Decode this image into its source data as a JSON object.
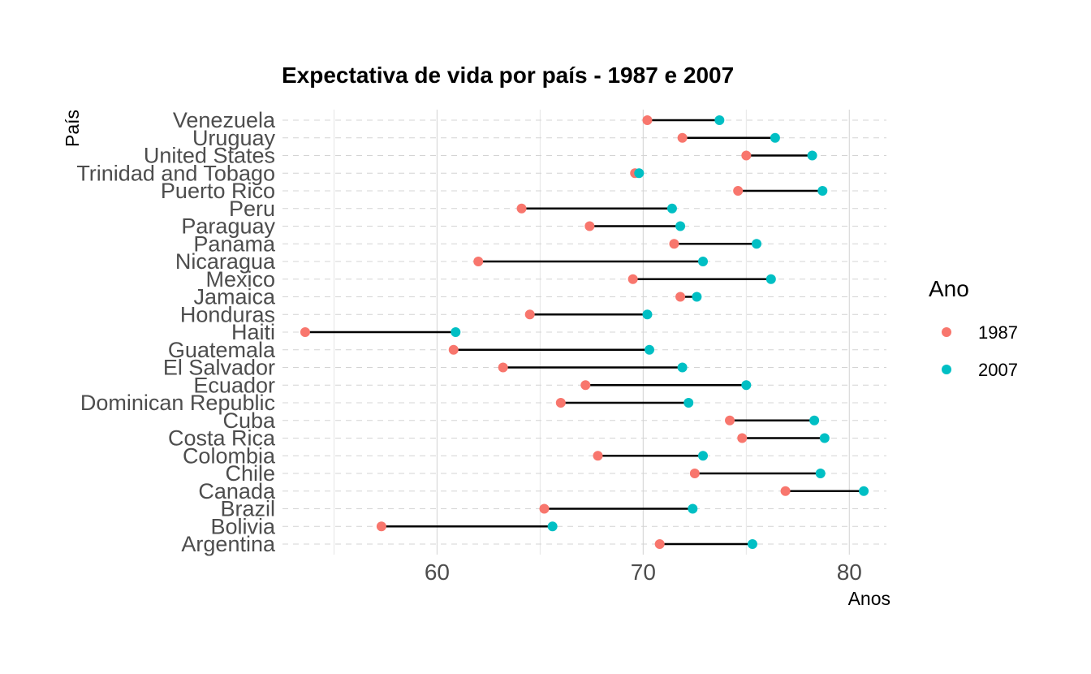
{
  "chart_data": {
    "type": "dumbbell",
    "title": "Expectativa de vida por país - 1987 e 2007",
    "xlabel": "Anos",
    "ylabel": "País",
    "xlim": [
      52.5,
      81.8
    ],
    "x_ticks": [
      60,
      70,
      80
    ],
    "x_tick_labels": [
      "60",
      "70",
      "80"
    ],
    "grid": true,
    "legend": {
      "title": "Ano",
      "placement": "right",
      "entries": [
        {
          "label": "1987",
          "color": "#F8766D"
        },
        {
          "label": "2007",
          "color": "#00BFC4"
        }
      ]
    },
    "categories": [
      "Venezuela",
      "Uruguay",
      "United States",
      "Trinidad and Tobago",
      "Puerto Rico",
      "Peru",
      "Paraguay",
      "Panama",
      "Nicaragua",
      "Mexico",
      "Jamaica",
      "Honduras",
      "Haiti",
      "Guatemala",
      "El Salvador",
      "Ecuador",
      "Dominican Republic",
      "Cuba",
      "Costa Rica",
      "Colombia",
      "Chile",
      "Canada",
      "Brazil",
      "Bolivia",
      "Argentina"
    ],
    "series": [
      {
        "name": "1987",
        "values": [
          70.2,
          71.9,
          75.0,
          69.6,
          74.6,
          64.1,
          67.4,
          71.5,
          62.0,
          69.5,
          71.8,
          64.5,
          53.6,
          60.8,
          63.2,
          67.2,
          66.0,
          74.2,
          74.8,
          67.8,
          72.5,
          76.9,
          65.2,
          57.3,
          70.8
        ]
      },
      {
        "name": "2007",
        "values": [
          73.7,
          76.4,
          78.2,
          69.8,
          78.7,
          71.4,
          71.8,
          75.5,
          72.9,
          76.2,
          72.6,
          70.2,
          60.9,
          70.3,
          71.9,
          75.0,
          72.2,
          78.3,
          78.8,
          72.9,
          78.6,
          80.7,
          72.4,
          65.6,
          75.3
        ]
      }
    ]
  }
}
